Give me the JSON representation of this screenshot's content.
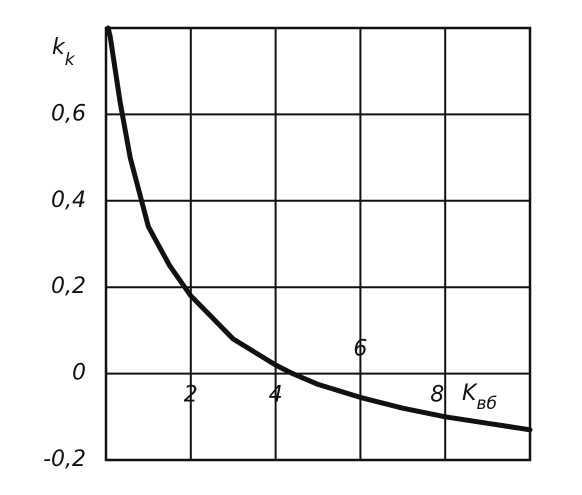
{
  "chart_data": {
    "type": "line",
    "ylabel": {
      "main": "k",
      "sub": "k"
    },
    "xlabel": {
      "main": "K",
      "sub": "вб"
    },
    "x": [
      0.05,
      0.1,
      0.33,
      0.57,
      1,
      1.5,
      2,
      3,
      4,
      4.4,
      5,
      6,
      7,
      8,
      9,
      10
    ],
    "series": [
      {
        "color": "#111111",
        "values": [
          0.8,
          0.78,
          0.63,
          0.5,
          0.34,
          0.25,
          0.18,
          0.08,
          0.02,
          0,
          -0.025,
          -0.055,
          -0.08,
          -0.1,
          -0.115,
          -0.13
        ]
      }
    ],
    "xlim": [
      0,
      10
    ],
    "ylim": [
      -0.2,
      0.8
    ],
    "xticks": [
      2,
      4,
      6,
      8
    ],
    "yticks": [
      {
        "value": -0.2,
        "label": "-0,2"
      },
      0,
      {
        "value": 0.2,
        "label": "0,2"
      },
      {
        "value": 0.4,
        "label": "0,4"
      },
      {
        "value": 0.6,
        "label": "0,6"
      }
    ],
    "grid": true
  }
}
